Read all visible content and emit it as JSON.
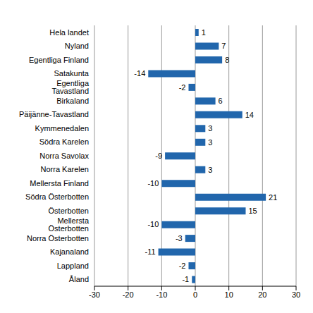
{
  "chart_data": {
    "type": "bar",
    "orientation": "horizontal",
    "categories": [
      "Hela landet",
      "Nyland",
      "Egentliga Finland",
      "Satakunta",
      "Egentliga Tavastland",
      "Birkaland",
      "Päijänne-Tavastland",
      "Kymmenedalen",
      "Södra Karelen",
      "Norra Savolax",
      "Norra Karelen",
      "Mellersta Finland",
      "Södra Österbotten",
      "Österbotten",
      "Mellersta Österbotten",
      "Norra Österbotten",
      "Kajanaland",
      "Lappland",
      "Åland"
    ],
    "values": [
      1,
      7,
      8,
      -14,
      -2,
      6,
      14,
      3,
      3,
      -9,
      3,
      -10,
      21,
      15,
      -10,
      -3,
      -11,
      -2,
      -1
    ],
    "color": "#2166ac",
    "xlim": [
      -30,
      30
    ],
    "xticks": [
      -30,
      -20,
      -10,
      0,
      10,
      20,
      30
    ],
    "grid": true,
    "data_labels": true
  }
}
